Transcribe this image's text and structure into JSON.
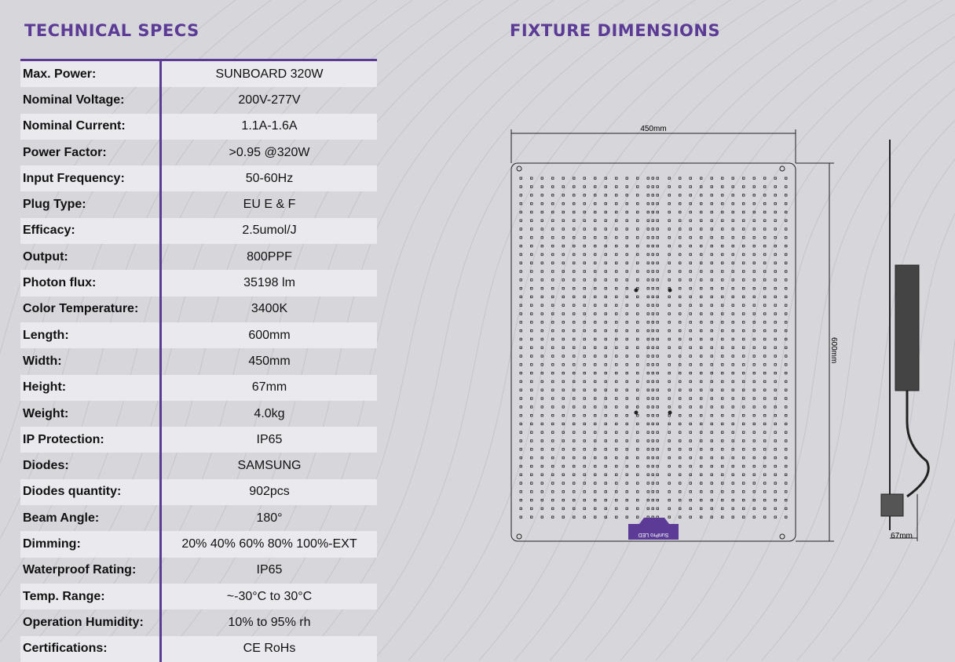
{
  "specs_title": "TECHNICAL SPECS",
  "dims_title": "FIXTURE DIMENSIONS",
  "specs": [
    {
      "k": "Max. Power:",
      "v": "SUNBOARD 320W"
    },
    {
      "k": "Nominal Voltage:",
      "v": "200V-277V"
    },
    {
      "k": "Nominal Current:",
      "v": "1.1A-1.6A"
    },
    {
      "k": "Power Factor:",
      "v": ">0.95 @320W"
    },
    {
      "k": "Input Frequency:",
      "v": "50-60Hz"
    },
    {
      "k": "Plug Type:",
      "v": "EU E & F"
    },
    {
      "k": "Efficacy:",
      "v": "2.5umol/J"
    },
    {
      "k": "Output:",
      "v": "800PPF"
    },
    {
      "k": "Photon flux:",
      "v": "35198 lm"
    },
    {
      "k": "Color Temperature:",
      "v": "3400K"
    },
    {
      "k": "Length:",
      "v": "600mm"
    },
    {
      "k": "Width:",
      "v": "450mm"
    },
    {
      "k": "Height:",
      "v": "67mm"
    },
    {
      "k": "Weight:",
      "v": "4.0kg"
    },
    {
      "k": "IP Protection:",
      "v": "IP65"
    },
    {
      "k": "Diodes:",
      "v": "SAMSUNG"
    },
    {
      "k": "Diodes quantity:",
      "v": "902pcs"
    },
    {
      "k": "Beam Angle:",
      "v": "180°"
    },
    {
      "k": "Dimming:",
      "v": "20% 40% 60% 80% 100%-EXT"
    },
    {
      "k": "Waterproof Rating:",
      "v": "IP65"
    },
    {
      "k": "Temp. Range:",
      "v": "~-30°C to 30°C"
    },
    {
      "k": "Operation Humidity:",
      "v": "10% to 95% rh"
    },
    {
      "k": "Certifications:",
      "v": "CE RoHs"
    }
  ],
  "dimensions": {
    "width": "450mm",
    "length": "600mm",
    "height": "67mm"
  },
  "logo_text": "SunPro LED",
  "colors": {
    "accent": "#5b3b96",
    "background": "#d6d6db"
  }
}
